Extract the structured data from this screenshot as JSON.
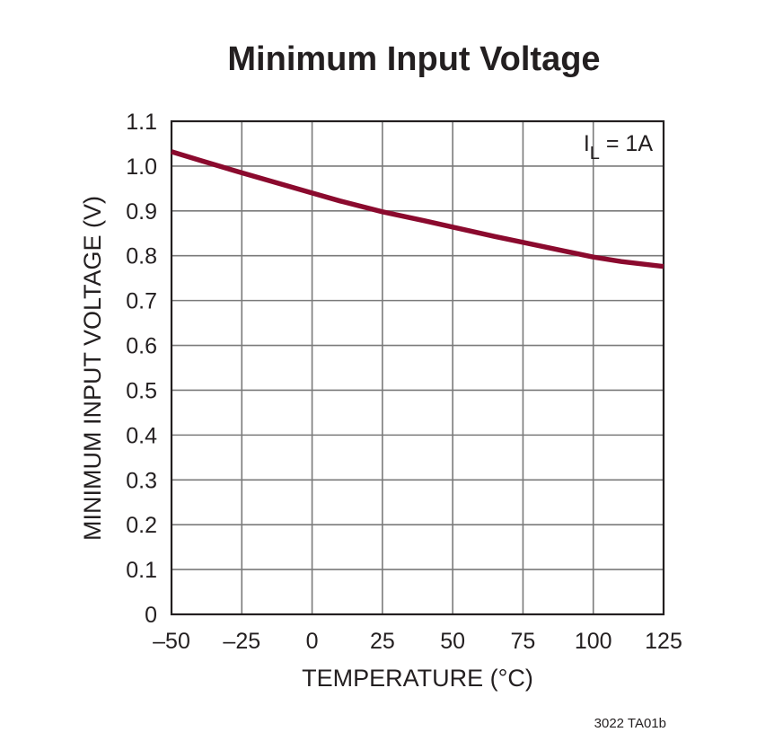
{
  "chart_data": {
    "type": "line",
    "title": "Minimum Input Voltage",
    "xlabel": "TEMPERATURE (°C)",
    "ylabel": "MINIMUM INPUT VOLTAGE (V)",
    "xlim": [
      -50,
      125
    ],
    "ylim": [
      0,
      1.1
    ],
    "xticks": [
      -50,
      -25,
      0,
      25,
      50,
      75,
      100,
      125
    ],
    "xtick_labels": [
      "–50",
      "–25",
      "0",
      "25",
      "50",
      "75",
      "100",
      "125"
    ],
    "yticks": [
      0,
      0.1,
      0.2,
      0.3,
      0.4,
      0.5,
      0.6,
      0.7,
      0.8,
      0.9,
      1.0,
      1.1
    ],
    "ytick_labels": [
      "0",
      "0.1",
      "0.2",
      "0.3",
      "0.4",
      "0.5",
      "0.6",
      "0.7",
      "0.8",
      "0.9",
      "1.0",
      "1.1"
    ],
    "grid": true,
    "annotation": {
      "main": "I",
      "sub": "L",
      "rest": " = 1A"
    },
    "series": [
      {
        "color": "#8b0a2e",
        "x": [
          -50,
          -40,
          -25,
          -10,
          0,
          10,
          25,
          40,
          50,
          65,
          75,
          90,
          100,
          110,
          125
        ],
        "y": [
          1.032,
          1.013,
          0.985,
          0.958,
          0.94,
          0.922,
          0.898,
          0.878,
          0.864,
          0.843,
          0.83,
          0.81,
          0.797,
          0.787,
          0.776
        ]
      }
    ]
  },
  "footnote": "3022 TA01b"
}
